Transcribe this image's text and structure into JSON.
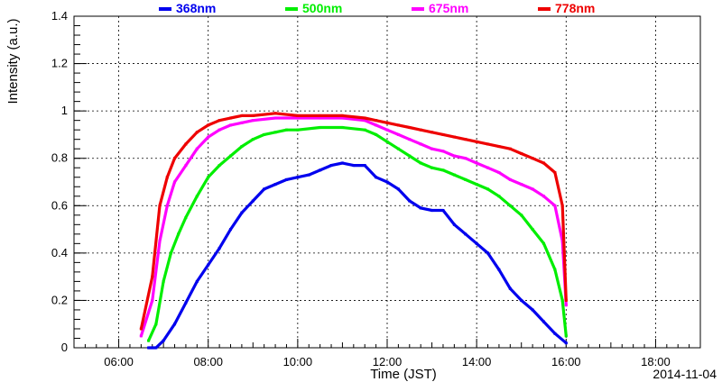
{
  "chart_data": {
    "type": "scatter",
    "title": "",
    "xlabel": "Time (JST)",
    "ylabel": "Intensity (a.u.)",
    "date_label": "2014-11-04",
    "xlim": [
      "05:00",
      "19:00"
    ],
    "ylim": [
      0,
      1.4
    ],
    "x_ticks": [
      "06:00",
      "08:00",
      "10:00",
      "12:00",
      "14:00",
      "16:00",
      "18:00"
    ],
    "y_ticks": [
      "0",
      "0.2",
      "0.4",
      "0.6",
      "0.8",
      "1",
      "1.2",
      "1.4"
    ],
    "grid": true,
    "legend_position": "top",
    "series": [
      {
        "name": "368nm",
        "color": "#0000ee",
        "points": [
          [
            "06:40",
            0.0
          ],
          [
            "06:50",
            0.0
          ],
          [
            "07:00",
            0.03
          ],
          [
            "07:15",
            0.1
          ],
          [
            "07:30",
            0.19
          ],
          [
            "07:45",
            0.28
          ],
          [
            "08:00",
            0.35
          ],
          [
            "08:15",
            0.42
          ],
          [
            "08:30",
            0.5
          ],
          [
            "08:45",
            0.57
          ],
          [
            "09:00",
            0.62
          ],
          [
            "09:15",
            0.67
          ],
          [
            "09:30",
            0.69
          ],
          [
            "09:45",
            0.71
          ],
          [
            "10:00",
            0.72
          ],
          [
            "10:15",
            0.73
          ],
          [
            "10:30",
            0.75
          ],
          [
            "10:45",
            0.77
          ],
          [
            "11:00",
            0.78
          ],
          [
            "11:15",
            0.77
          ],
          [
            "11:30",
            0.77
          ],
          [
            "11:45",
            0.72
          ],
          [
            "12:00",
            0.7
          ],
          [
            "12:15",
            0.67
          ],
          [
            "12:30",
            0.62
          ],
          [
            "12:45",
            0.59
          ],
          [
            "13:00",
            0.58
          ],
          [
            "13:15",
            0.58
          ],
          [
            "13:30",
            0.52
          ],
          [
            "13:45",
            0.48
          ],
          [
            "14:00",
            0.44
          ],
          [
            "14:15",
            0.4
          ],
          [
            "14:30",
            0.33
          ],
          [
            "14:45",
            0.25
          ],
          [
            "15:00",
            0.2
          ],
          [
            "15:15",
            0.16
          ],
          [
            "15:30",
            0.11
          ],
          [
            "15:45",
            0.06
          ],
          [
            "16:00",
            0.02
          ]
        ]
      },
      {
        "name": "500nm",
        "color": "#00ee00",
        "points": [
          [
            "06:40",
            0.03
          ],
          [
            "06:50",
            0.1
          ],
          [
            "07:00",
            0.28
          ],
          [
            "07:10",
            0.4
          ],
          [
            "07:20",
            0.48
          ],
          [
            "07:30",
            0.55
          ],
          [
            "07:45",
            0.64
          ],
          [
            "08:00",
            0.72
          ],
          [
            "08:15",
            0.77
          ],
          [
            "08:30",
            0.81
          ],
          [
            "08:45",
            0.85
          ],
          [
            "09:00",
            0.88
          ],
          [
            "09:15",
            0.9
          ],
          [
            "09:30",
            0.91
          ],
          [
            "09:45",
            0.92
          ],
          [
            "10:00",
            0.92
          ],
          [
            "10:30",
            0.93
          ],
          [
            "11:00",
            0.93
          ],
          [
            "11:30",
            0.92
          ],
          [
            "11:45",
            0.9
          ],
          [
            "12:00",
            0.87
          ],
          [
            "12:15",
            0.84
          ],
          [
            "12:30",
            0.81
          ],
          [
            "12:45",
            0.78
          ],
          [
            "13:00",
            0.76
          ],
          [
            "13:15",
            0.75
          ],
          [
            "13:30",
            0.73
          ],
          [
            "13:45",
            0.71
          ],
          [
            "14:00",
            0.69
          ],
          [
            "14:15",
            0.67
          ],
          [
            "14:30",
            0.64
          ],
          [
            "14:45",
            0.6
          ],
          [
            "15:00",
            0.56
          ],
          [
            "15:15",
            0.5
          ],
          [
            "15:30",
            0.44
          ],
          [
            "15:45",
            0.33
          ],
          [
            "15:55",
            0.2
          ],
          [
            "16:00",
            0.05
          ]
        ]
      },
      {
        "name": "675nm",
        "color": "#ff00ff",
        "points": [
          [
            "06:30",
            0.05
          ],
          [
            "06:45",
            0.2
          ],
          [
            "06:55",
            0.45
          ],
          [
            "07:05",
            0.6
          ],
          [
            "07:15",
            0.7
          ],
          [
            "07:30",
            0.77
          ],
          [
            "07:45",
            0.84
          ],
          [
            "08:00",
            0.89
          ],
          [
            "08:15",
            0.92
          ],
          [
            "08:30",
            0.94
          ],
          [
            "08:45",
            0.95
          ],
          [
            "09:00",
            0.96
          ],
          [
            "09:30",
            0.97
          ],
          [
            "10:00",
            0.97
          ],
          [
            "10:30",
            0.97
          ],
          [
            "11:00",
            0.97
          ],
          [
            "11:30",
            0.96
          ],
          [
            "11:45",
            0.94
          ],
          [
            "12:00",
            0.92
          ],
          [
            "12:15",
            0.9
          ],
          [
            "12:30",
            0.88
          ],
          [
            "12:45",
            0.86
          ],
          [
            "13:00",
            0.84
          ],
          [
            "13:15",
            0.83
          ],
          [
            "13:30",
            0.81
          ],
          [
            "13:45",
            0.8
          ],
          [
            "14:00",
            0.78
          ],
          [
            "14:15",
            0.76
          ],
          [
            "14:30",
            0.74
          ],
          [
            "14:45",
            0.71
          ],
          [
            "15:00",
            0.69
          ],
          [
            "15:15",
            0.67
          ],
          [
            "15:30",
            0.64
          ],
          [
            "15:45",
            0.6
          ],
          [
            "15:55",
            0.45
          ],
          [
            "16:00",
            0.18
          ]
        ]
      },
      {
        "name": "778nm",
        "color": "#ee0000",
        "points": [
          [
            "06:30",
            0.08
          ],
          [
            "06:45",
            0.3
          ],
          [
            "06:55",
            0.6
          ],
          [
            "07:05",
            0.72
          ],
          [
            "07:15",
            0.8
          ],
          [
            "07:30",
            0.86
          ],
          [
            "07:45",
            0.91
          ],
          [
            "08:00",
            0.94
          ],
          [
            "08:15",
            0.96
          ],
          [
            "08:30",
            0.97
          ],
          [
            "08:45",
            0.98
          ],
          [
            "09:00",
            0.98
          ],
          [
            "09:30",
            0.99
          ],
          [
            "10:00",
            0.98
          ],
          [
            "10:30",
            0.98
          ],
          [
            "11:00",
            0.98
          ],
          [
            "11:30",
            0.97
          ],
          [
            "11:45",
            0.96
          ],
          [
            "12:00",
            0.95
          ],
          [
            "12:15",
            0.94
          ],
          [
            "12:30",
            0.93
          ],
          [
            "12:45",
            0.92
          ],
          [
            "13:00",
            0.91
          ],
          [
            "13:15",
            0.9
          ],
          [
            "13:30",
            0.89
          ],
          [
            "13:45",
            0.88
          ],
          [
            "14:00",
            0.87
          ],
          [
            "14:15",
            0.86
          ],
          [
            "14:30",
            0.85
          ],
          [
            "14:45",
            0.84
          ],
          [
            "15:00",
            0.82
          ],
          [
            "15:15",
            0.8
          ],
          [
            "15:30",
            0.78
          ],
          [
            "15:45",
            0.74
          ],
          [
            "15:55",
            0.6
          ],
          [
            "16:00",
            0.2
          ]
        ]
      }
    ]
  }
}
